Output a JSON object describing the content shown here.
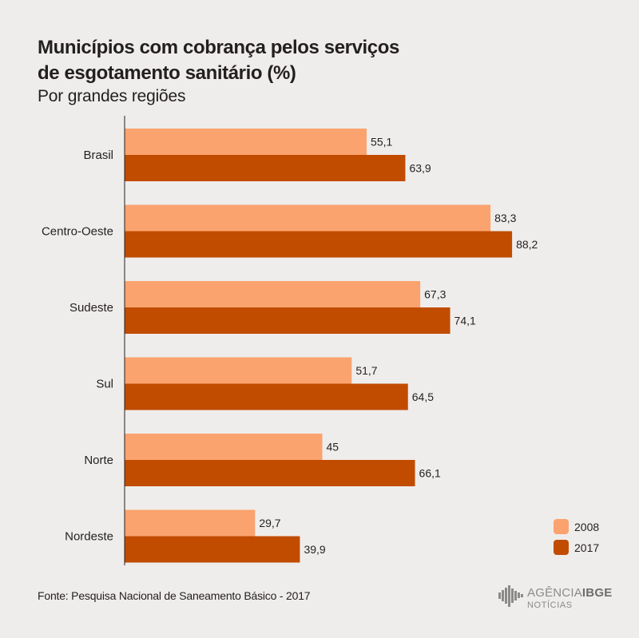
{
  "header": {
    "title_line1": "Municípios com cobrança pelos serviços",
    "title_line2": "de esgotamento sanitário (%)",
    "subtitle": "Por grandes regiões"
  },
  "footer": {
    "source": "Fonte: Pesquisa Nacional de Saneamento Básico - 2017",
    "logo_word1": "AGÊNCIA",
    "logo_word2": "IBGE",
    "logo_sub": "NOTÍCIAS"
  },
  "colors": {
    "series_2008": "#fba36e",
    "series_2017": "#c14c00",
    "background": "#efedeb",
    "axis": "#231f20"
  },
  "chart_data": {
    "type": "bar",
    "orientation": "horizontal",
    "title": "Municípios com cobrança pelos serviços de esgotamento sanitário (%)",
    "subtitle": "Por grandes regiões",
    "categories": [
      "Brasil",
      "Centro-Oeste",
      "Sudeste",
      "Sul",
      "Norte",
      "Nordeste"
    ],
    "series": [
      {
        "name": "2008",
        "values": [
          55.1,
          83.3,
          67.3,
          51.7,
          45,
          29.7
        ],
        "labels": [
          "55,1",
          "83,3",
          "67,3",
          "51,7",
          "45",
          "29,7"
        ]
      },
      {
        "name": "2017",
        "values": [
          63.9,
          88.2,
          74.1,
          64.5,
          66.1,
          39.9
        ],
        "labels": [
          "63,9",
          "88,2",
          "74,1",
          "64,5",
          "66,1",
          "39,9"
        ]
      }
    ],
    "xlim": [
      0,
      100
    ],
    "grid": false,
    "legend": "bottom-right"
  }
}
